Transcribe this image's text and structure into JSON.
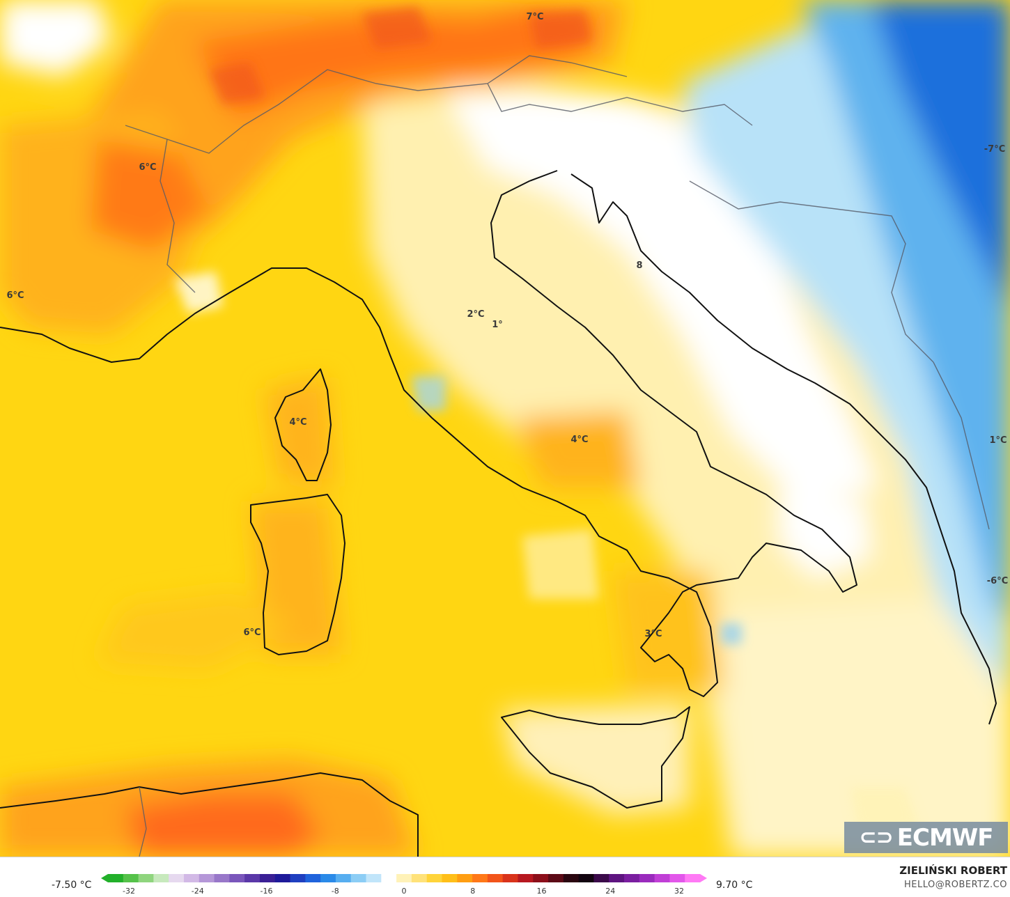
{
  "map": {
    "labels": [
      {
        "id": "alps-east",
        "text": "7°C"
      },
      {
        "id": "alps-west",
        "text": "6°C"
      },
      {
        "id": "france-south",
        "text": "6°C"
      },
      {
        "id": "balkans-east",
        "text": "-7°C"
      },
      {
        "id": "po-valley",
        "text": "2°C"
      },
      {
        "id": "apennines-small",
        "text": "1°"
      },
      {
        "id": "corsica",
        "text": "4°C"
      },
      {
        "id": "central-italy",
        "text": "4°C"
      },
      {
        "id": "balkans-south",
        "text": "1°C"
      },
      {
        "id": "greece-west",
        "text": "-6°C"
      },
      {
        "id": "sardinia",
        "text": "6°C"
      },
      {
        "id": "calabria",
        "text": "3°C"
      },
      {
        "id": "croatia",
        "text": "8"
      }
    ]
  },
  "logo": {
    "text": "ECMWF"
  },
  "legend": {
    "min_value": "-7.50 °C",
    "max_value": "9.70 °C",
    "ticks": [
      "-32",
      "-24",
      "-16",
      "-8",
      "0",
      "8",
      "16",
      "24",
      "32"
    ],
    "colors": [
      "#22b02a",
      "#55c24a",
      "#8fd57e",
      "#c7e9bd",
      "#e6d9ef",
      "#d2b9e6",
      "#b597d8",
      "#9877c9",
      "#7a56bb",
      "#5a38a8",
      "#3a1f95",
      "#1e1a9a",
      "#1f3fc0",
      "#1f63dc",
      "#2a8ae8",
      "#57aef0",
      "#8ccdf5",
      "#c1e5fa",
      "#ffffff",
      "#fff2b8",
      "#ffe27a",
      "#ffd43a",
      "#ffbf19",
      "#ff9e12",
      "#ff7818",
      "#f2541a",
      "#d9331b",
      "#b71820",
      "#8c0f1a",
      "#5c0a16",
      "#2a0610",
      "#120410",
      "#3b0a4a",
      "#5e1480",
      "#7a1ea0",
      "#9a2bbd",
      "#c03fd6",
      "#e257ea",
      "#ff7af5"
    ]
  },
  "author": {
    "name": "ZIELIŃSKI ROBERT",
    "email": "HELLO@ROBERTZ.CO"
  }
}
